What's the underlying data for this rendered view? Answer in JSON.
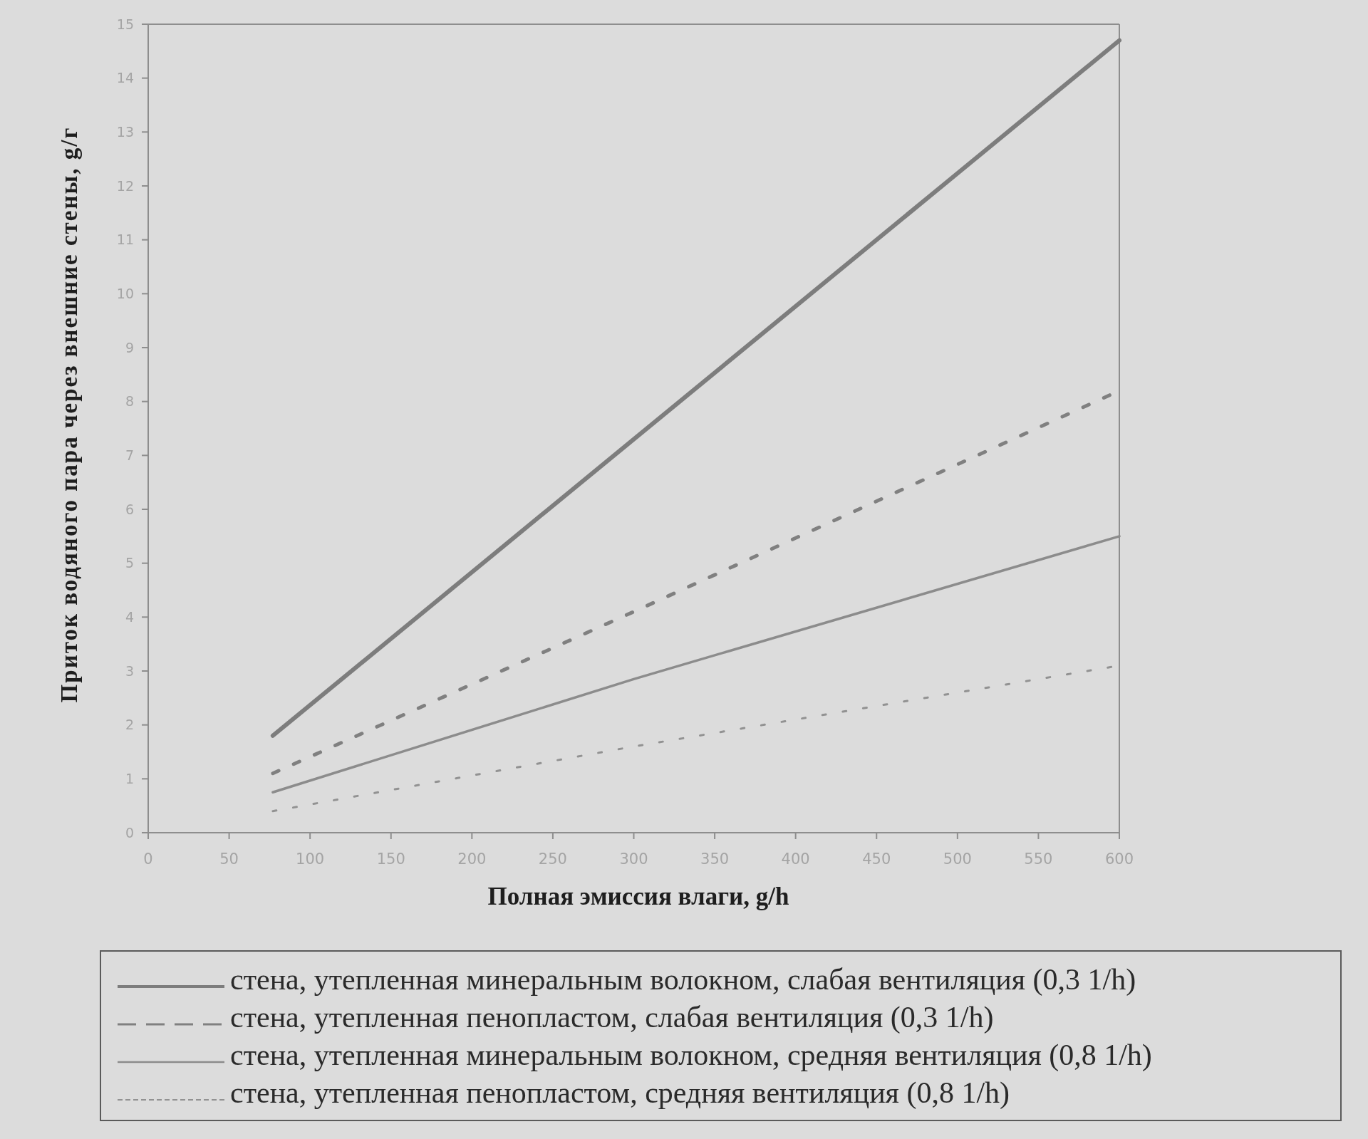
{
  "chart_data": {
    "type": "line",
    "xlabel": "Полная эмиссия влаги, g/h",
    "ylabel": "Приток водяного пара через внешние стены, g/г",
    "x": [
      77,
      300,
      600
    ],
    "series": [
      {
        "name": "стена, утепленная минеральным волокном, слабая вентиляция (0,3 1/h)",
        "color": "#7d7d7d",
        "values": [
          1.8,
          7.3,
          14.7
        ],
        "line_style": "solid"
      },
      {
        "name": "стена, утепленная пенопластом, слабая вентиляция (0,3 1/h)",
        "color": "#808080",
        "values": [
          1.1,
          4.1,
          8.2
        ],
        "line_style": "dashed"
      },
      {
        "name": "стена, утепленная минеральным волокном, средняя вентиляция (0,8 1/h)",
        "color": "#8c8c8c",
        "values": [
          0.75,
          2.85,
          5.5
        ],
        "line_style": "solid"
      },
      {
        "name": "стена, утепленная пенопластом, средняя вентиляция (0,8 1/h)",
        "color": "#929292",
        "values": [
          0.4,
          1.6,
          3.1
        ],
        "line_style": "dotted"
      }
    ],
    "xlim": [
      0,
      600
    ],
    "xticks": [
      0,
      50,
      100,
      150,
      200,
      250,
      300,
      350,
      400,
      450,
      500,
      550,
      600
    ],
    "ylim": [
      0,
      15
    ],
    "yticks": [
      0,
      1,
      2,
      3,
      4,
      5,
      6,
      7,
      8,
      9,
      10,
      11,
      12,
      13,
      14,
      15
    ],
    "legend": "bottom"
  }
}
